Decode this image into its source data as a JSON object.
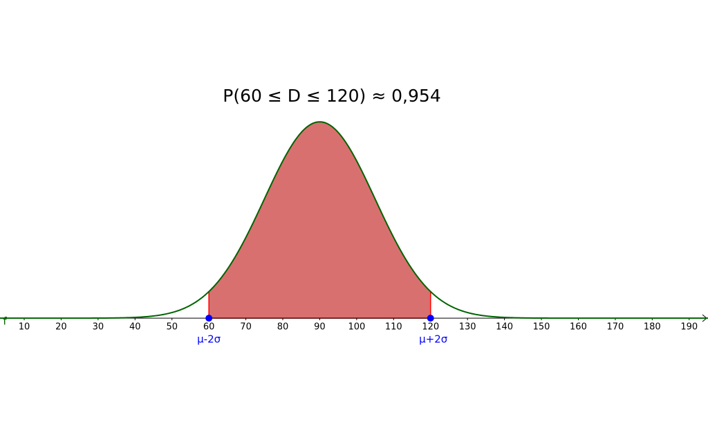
{
  "chart_data": {
    "type": "normal",
    "title": "P(60 ≤ D ≤ 120) ≈ 0,954",
    "curve_label": "f",
    "mean": 90,
    "sd": 15,
    "curve_color": "#006400",
    "area": [
      60,
      120
    ],
    "area_color": "#d97070",
    "area_border_color": "#ff0000",
    "points": {
      "x": [
        60,
        120
      ],
      "labels": [
        "μ-2σ",
        "μ+2σ"
      ],
      "color": "#0000ff"
    },
    "xlim": [
      3.45,
      195.1
    ],
    "xticks": [
      10,
      20,
      30,
      40,
      50,
      60,
      70,
      80,
      90,
      100,
      110,
      120,
      130,
      140,
      150,
      160,
      170,
      180,
      190
    ],
    "ylim": [
      -0.0161,
      0.0431
    ]
  }
}
